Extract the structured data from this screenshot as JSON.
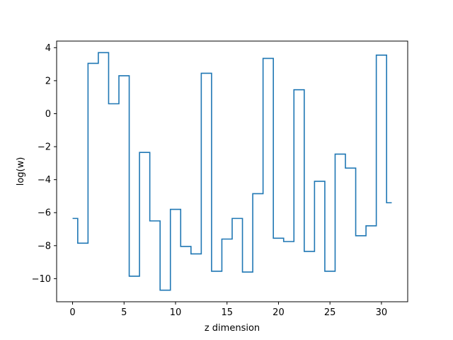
{
  "chart_data": {
    "type": "line",
    "drawstyle": "steps-mid",
    "title": "",
    "xlabel": "z dimension",
    "ylabel": "log(w)",
    "xlim": [
      -1.55,
      32.55
    ],
    "ylim": [
      -11.4,
      4.4
    ],
    "xticks": [
      0,
      5,
      10,
      15,
      20,
      25,
      30
    ],
    "xtick_labels": [
      "0",
      "5",
      "10",
      "15",
      "20",
      "25",
      "30"
    ],
    "yticks": [
      -10,
      -8,
      -6,
      -4,
      -2,
      0,
      2,
      4
    ],
    "ytick_labels": [
      "−10",
      "−8",
      "−6",
      "−4",
      "−2",
      "0",
      "2",
      "4"
    ],
    "grid": false,
    "color": "#1f77b4",
    "series": [
      {
        "x": [
          0,
          1,
          2,
          3,
          4,
          5,
          6,
          7,
          8,
          9,
          10,
          11,
          12,
          13,
          14,
          15,
          16,
          17,
          18,
          19,
          20,
          21,
          22,
          23,
          24,
          25,
          26,
          27,
          28,
          29,
          30,
          31
        ],
        "values": [
          -6.35,
          -7.85,
          3.05,
          3.7,
          0.6,
          2.3,
          -9.85,
          -2.35,
          -6.5,
          -10.7,
          -5.8,
          -8.05,
          -8.5,
          2.45,
          -9.55,
          -7.6,
          -6.35,
          -9.6,
          -4.85,
          3.35,
          -7.55,
          -7.75,
          1.45,
          -8.35,
          -4.1,
          -9.55,
          -2.45,
          -3.3,
          -7.4,
          -6.8,
          3.55,
          -5.4
        ]
      }
    ]
  }
}
